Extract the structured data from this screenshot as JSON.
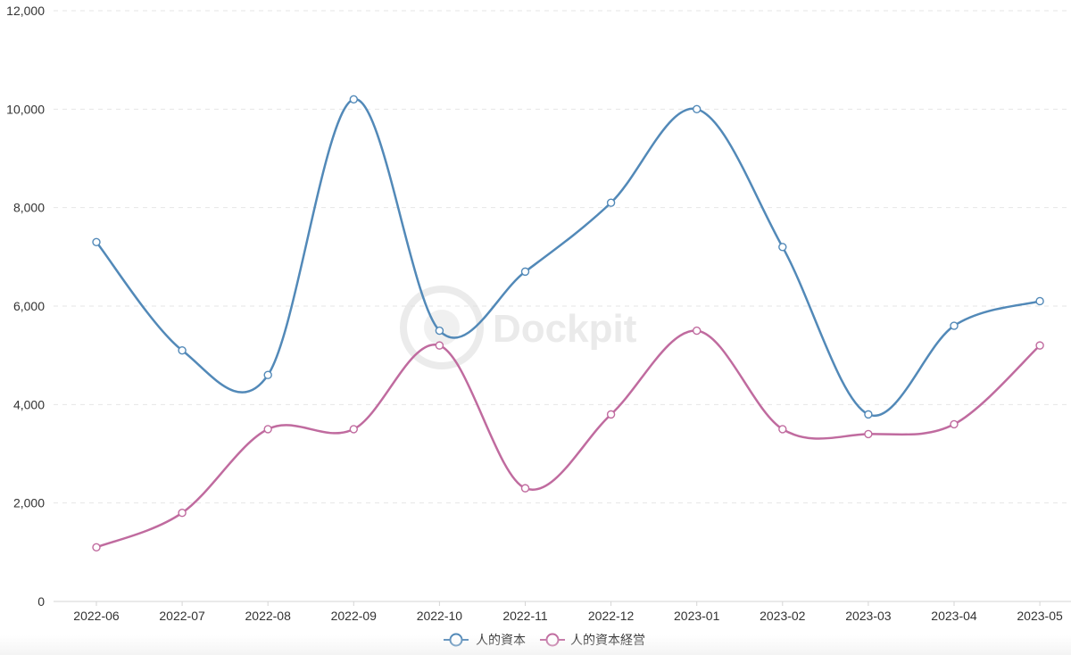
{
  "chart_data": {
    "type": "line",
    "title": "",
    "xlabel": "",
    "ylabel": "",
    "categories": [
      "2022-06",
      "2022-07",
      "2022-08",
      "2022-09",
      "2022-10",
      "2022-11",
      "2022-12",
      "2023-01",
      "2023-02",
      "2023-03",
      "2023-04",
      "2023-05"
    ],
    "series": [
      {
        "name": "人的資本",
        "color": "#5289b8",
        "values": [
          7300,
          5100,
          4600,
          10200,
          5500,
          6700,
          8100,
          10000,
          7200,
          3800,
          5600,
          6100
        ]
      },
      {
        "name": "人的資本経営",
        "color": "#c06b9f",
        "values": [
          1100,
          1800,
          3500,
          3500,
          5200,
          2300,
          3800,
          5500,
          3500,
          3400,
          3600,
          5200
        ]
      }
    ],
    "ylim": [
      0,
      12000
    ],
    "yticks": [
      "0",
      "2,000",
      "4,000",
      "6,000",
      "8,000",
      "10,000",
      "12,000"
    ],
    "smooth": true,
    "grid": "horizontal dashed",
    "legend_position": "bottom-center",
    "watermark": "Dockpit"
  }
}
